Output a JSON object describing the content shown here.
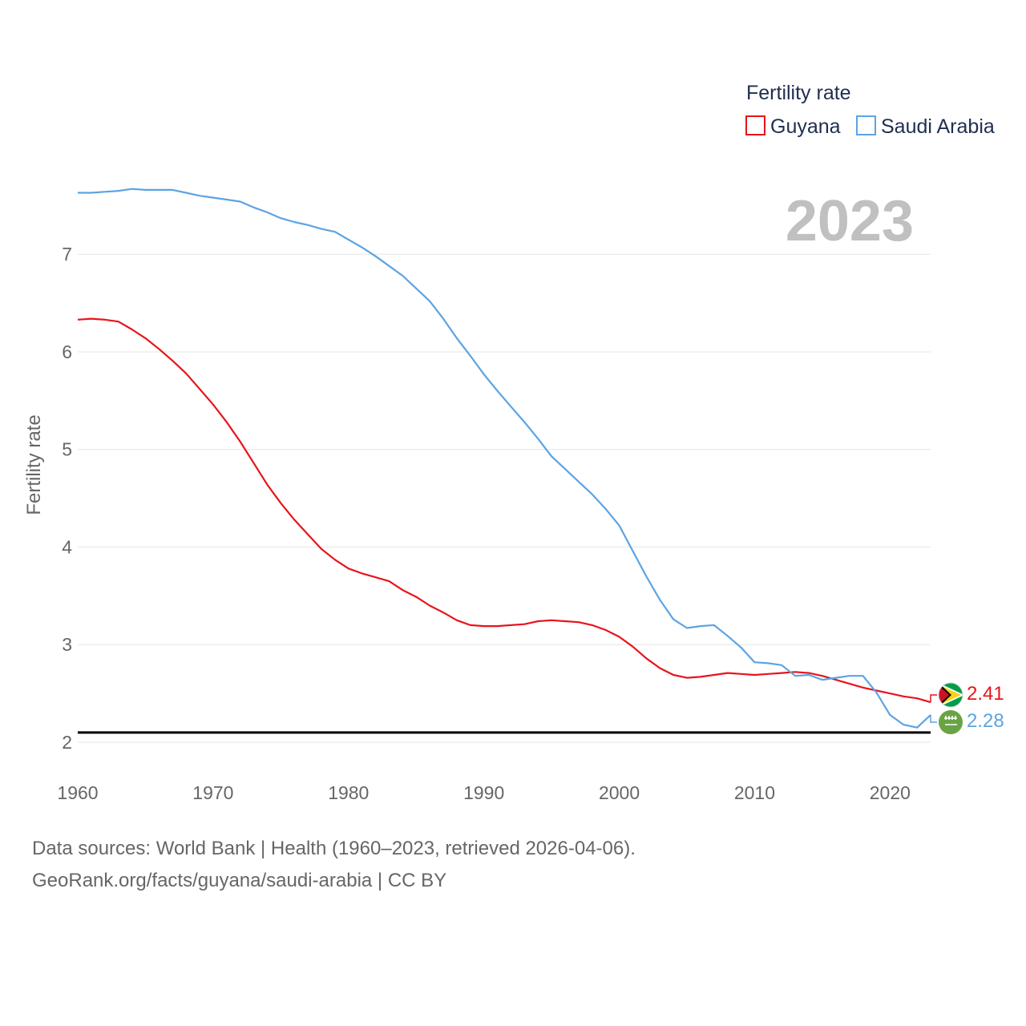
{
  "chart_data": {
    "type": "line",
    "legend_title": "Fertility rate",
    "ylabel": "Fertility rate",
    "year_label": "2023",
    "xlim": [
      1960,
      2023
    ],
    "ylim": [
      2,
      7.7
    ],
    "x_ticks": [
      1960,
      1970,
      1980,
      1990,
      2000,
      2010,
      2020
    ],
    "y_ticks": [
      2,
      3,
      4,
      5,
      6,
      7
    ],
    "reference_line": 2.1,
    "x": [
      1960,
      1961,
      1962,
      1963,
      1964,
      1965,
      1966,
      1967,
      1968,
      1969,
      1970,
      1971,
      1972,
      1973,
      1974,
      1975,
      1976,
      1977,
      1978,
      1979,
      1980,
      1981,
      1982,
      1983,
      1984,
      1985,
      1986,
      1987,
      1988,
      1989,
      1990,
      1991,
      1992,
      1993,
      1994,
      1995,
      1996,
      1997,
      1998,
      1999,
      2000,
      2001,
      2002,
      2003,
      2004,
      2005,
      2006,
      2007,
      2008,
      2009,
      2010,
      2011,
      2012,
      2013,
      2014,
      2015,
      2016,
      2017,
      2018,
      2019,
      2020,
      2021,
      2022,
      2023
    ],
    "series": [
      {
        "name": "Guyana",
        "color": "#e8141b",
        "end_label": "2.41",
        "values": [
          6.33,
          6.34,
          6.33,
          6.31,
          6.23,
          6.14,
          6.03,
          5.91,
          5.78,
          5.62,
          5.46,
          5.28,
          5.08,
          4.86,
          4.64,
          4.45,
          4.28,
          4.13,
          3.98,
          3.87,
          3.78,
          3.73,
          3.69,
          3.65,
          3.56,
          3.49,
          3.4,
          3.33,
          3.25,
          3.2,
          3.19,
          3.19,
          3.2,
          3.21,
          3.24,
          3.25,
          3.24,
          3.23,
          3.2,
          3.15,
          3.08,
          2.98,
          2.86,
          2.76,
          2.69,
          2.66,
          2.67,
          2.69,
          2.71,
          2.7,
          2.69,
          2.7,
          2.71,
          2.72,
          2.71,
          2.68,
          2.64,
          2.6,
          2.56,
          2.53,
          2.5,
          2.47,
          2.45,
          2.41
        ]
      },
      {
        "name": "Saudi Arabia",
        "color": "#5ca4e2",
        "end_label": "2.28",
        "values": [
          7.63,
          7.63,
          7.64,
          7.65,
          7.67,
          7.66,
          7.66,
          7.66,
          7.63,
          7.6,
          7.58,
          7.56,
          7.54,
          7.48,
          7.43,
          7.37,
          7.33,
          7.3,
          7.26,
          7.23,
          7.15,
          7.07,
          6.98,
          6.88,
          6.78,
          6.65,
          6.52,
          6.34,
          6.14,
          5.96,
          5.77,
          5.6,
          5.44,
          5.28,
          5.11,
          4.93,
          4.8,
          4.67,
          4.54,
          4.39,
          4.22,
          3.96,
          3.7,
          3.46,
          3.26,
          3.17,
          3.19,
          3.2,
          3.09,
          2.97,
          2.82,
          2.81,
          2.79,
          2.68,
          2.69,
          2.64,
          2.66,
          2.68,
          2.68,
          2.51,
          2.28,
          2.18,
          2.15,
          2.28
        ]
      }
    ]
  },
  "footer": {
    "line1": "Data sources: World Bank | Health (1960–2023, retrieved 2026-04-06).",
    "line2": "GeoRank.org/facts/guyana/saudi-arabia | CC BY"
  }
}
